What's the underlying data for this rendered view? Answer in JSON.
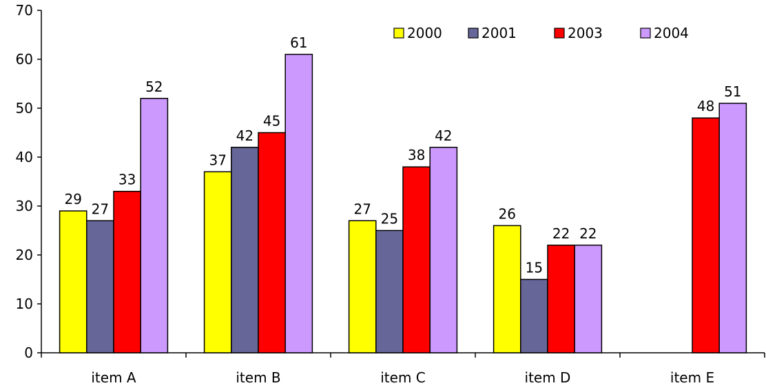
{
  "chart_data": {
    "type": "bar",
    "title": "",
    "xlabel": "",
    "ylabel": "",
    "ylim": [
      0,
      70
    ],
    "yticks": [
      0,
      10,
      20,
      30,
      40,
      50,
      60,
      70
    ],
    "grid": false,
    "legend_position": "top-right",
    "categories": [
      "item A",
      "item B",
      "item C",
      "item D",
      "item E"
    ],
    "series": [
      {
        "name": "2000",
        "color": "#ffff00",
        "values": [
          29,
          37,
          27,
          26,
          null
        ]
      },
      {
        "name": "2001",
        "color": "#666699",
        "values": [
          27,
          42,
          25,
          15,
          null
        ]
      },
      {
        "name": "2003",
        "color": "#ff0000",
        "values": [
          33,
          45,
          38,
          22,
          48
        ]
      },
      {
        "name": "2004",
        "color": "#cc99ff",
        "values": [
          52,
          61,
          42,
          22,
          51
        ]
      }
    ]
  }
}
